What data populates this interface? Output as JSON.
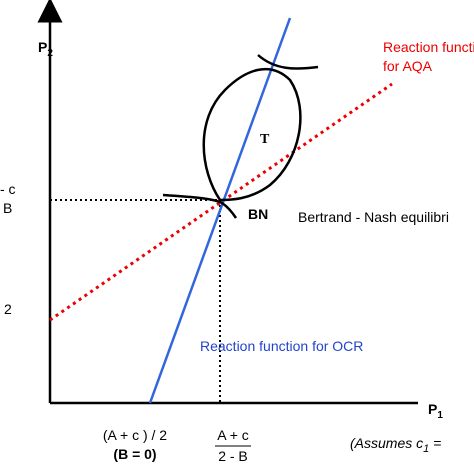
{
  "axes": {
    "y_label": "P",
    "y_label_sub": "2",
    "x_label": "P",
    "x_label_sub": "1"
  },
  "left_labels": {
    "top_fraction_numerator": "- c",
    "top_fraction_denominator": "B",
    "lower": "2"
  },
  "bottom_labels": {
    "left_line1": "(A + c ) / 2",
    "left_line2": "(B = 0)",
    "fraction_numerator": "A + c",
    "fraction_denominator": "2 - B",
    "assumes": "(Assumes c",
    "assumes_sub": "1",
    "assumes_tail": " ="
  },
  "curves": {
    "aqa_line1": "Reaction functi",
    "aqa_line2": "for AQA",
    "ocr": "Reaction function for OCR"
  },
  "points": {
    "region": "T",
    "equilibrium": "BN",
    "equilibrium_desc": "Bertrand - Nash equilibri"
  }
}
